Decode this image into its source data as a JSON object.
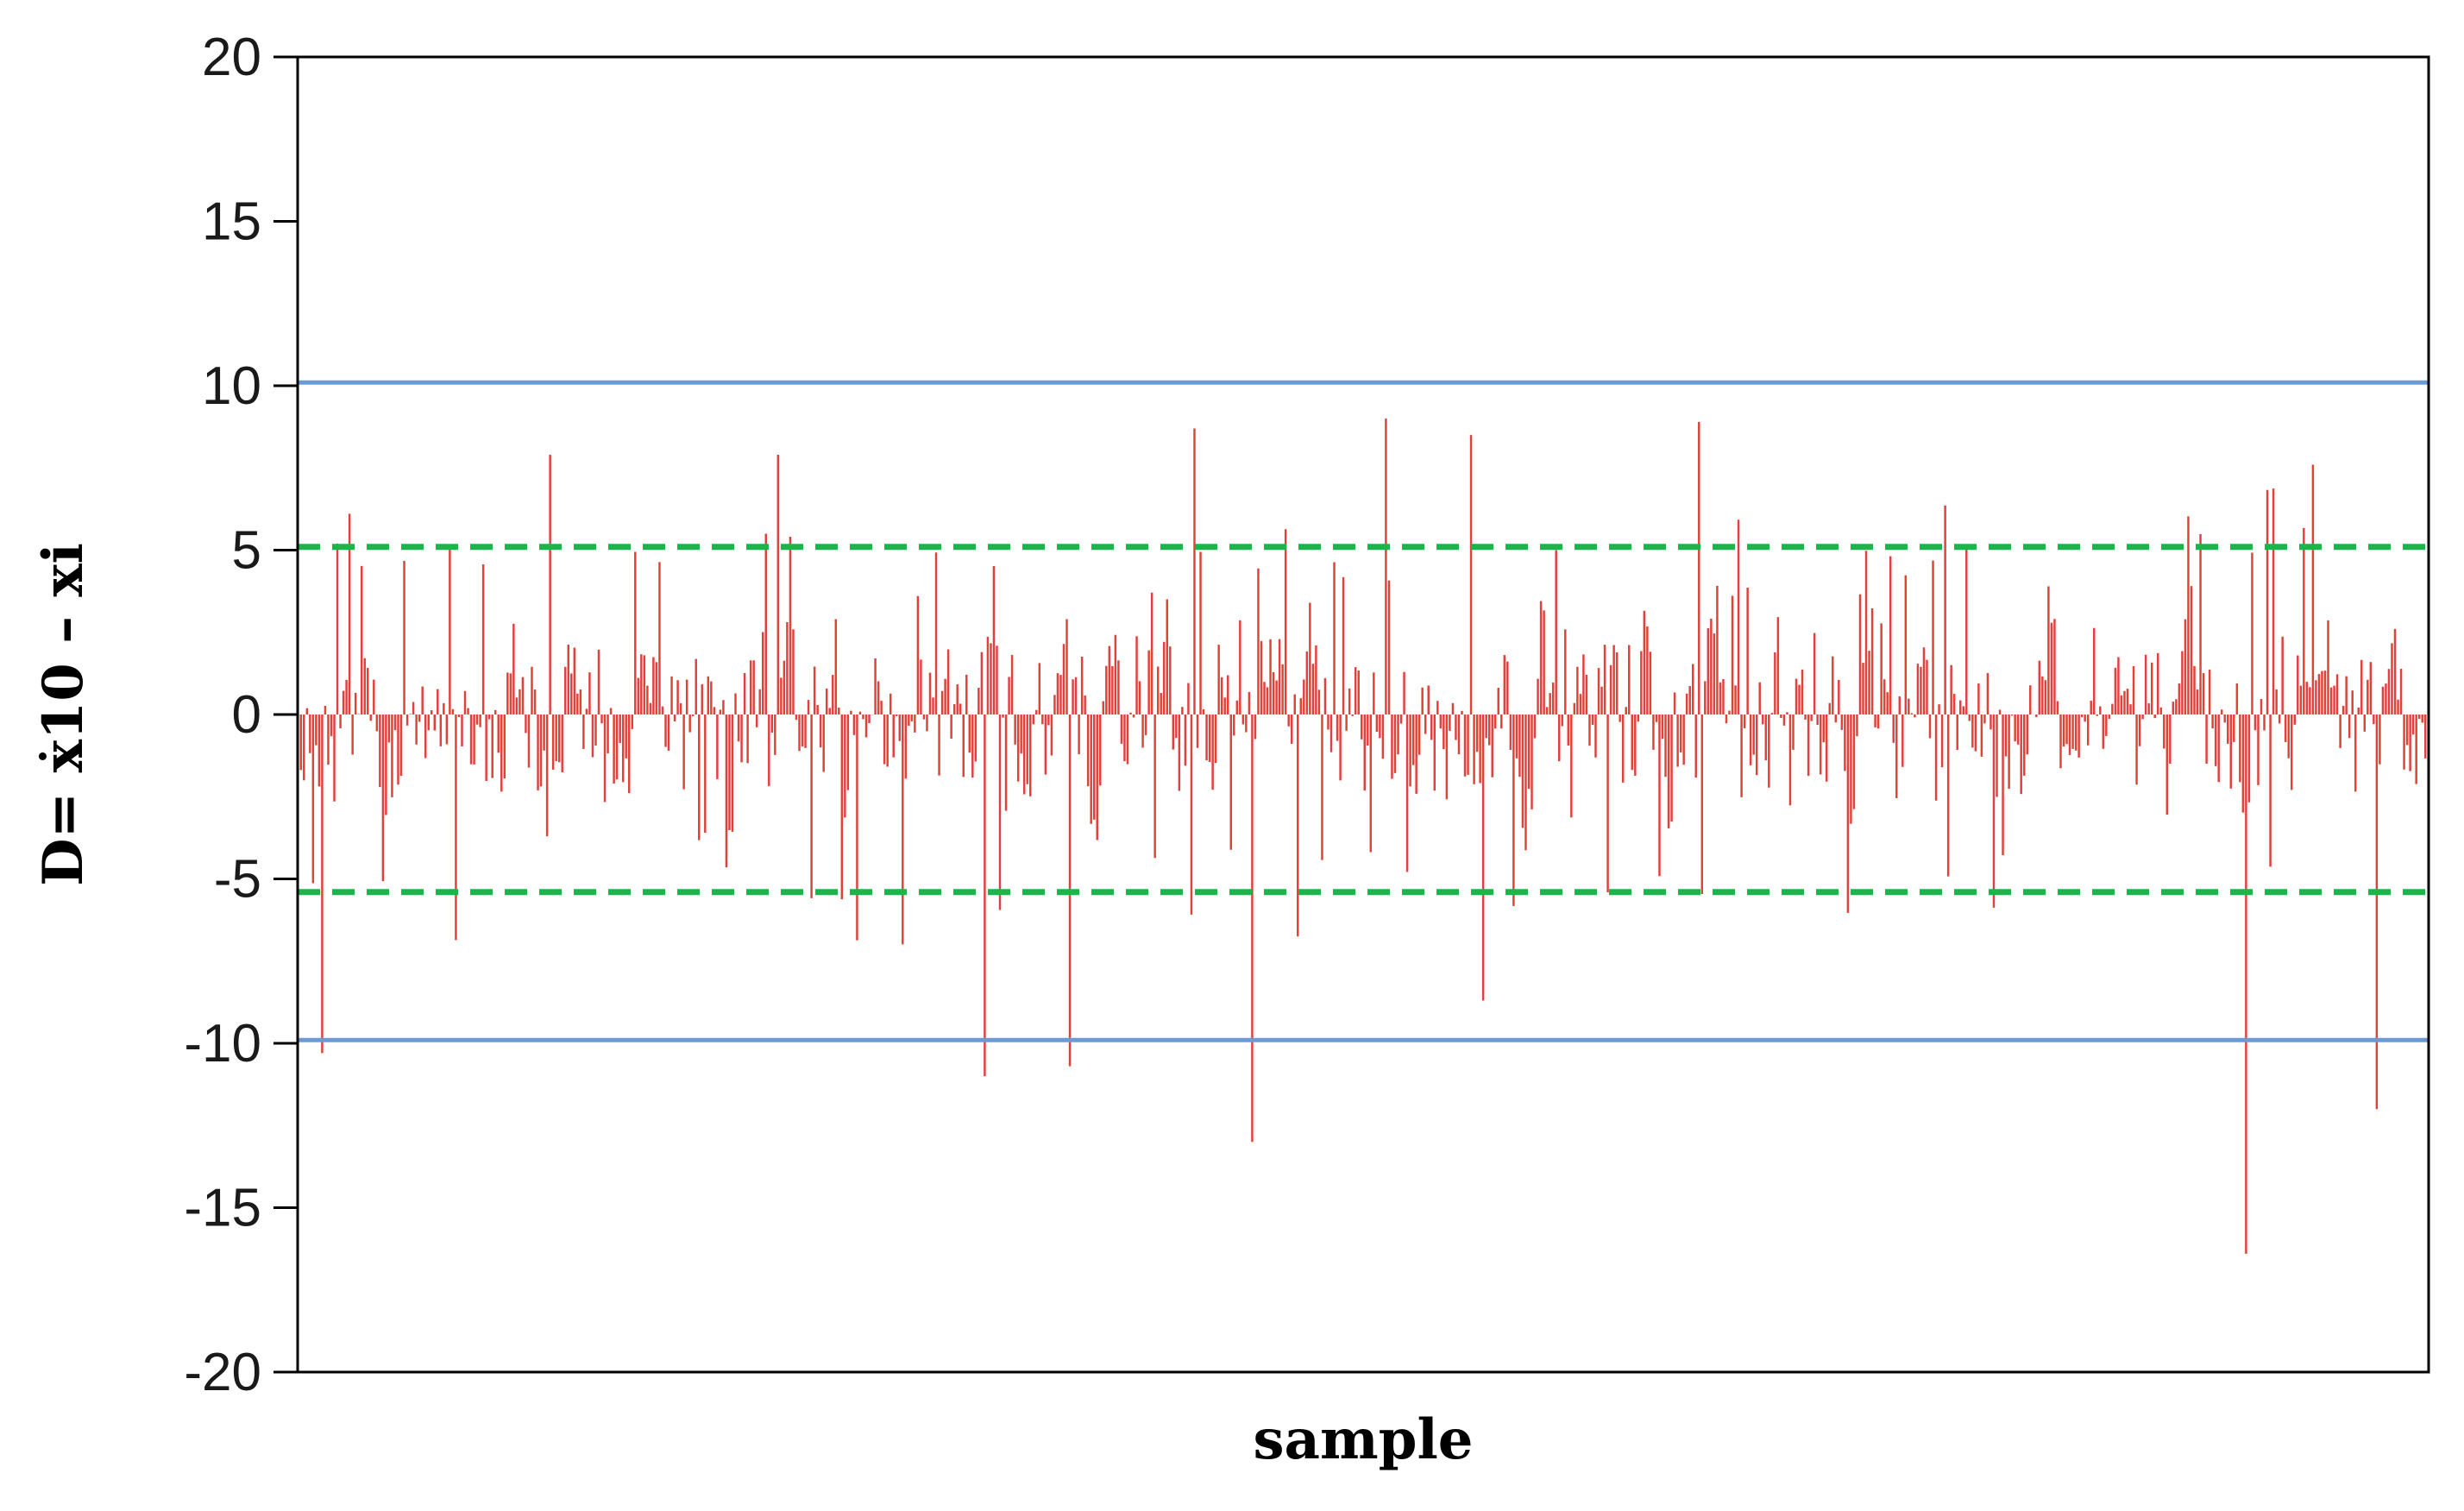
{
  "chart_data": {
    "type": "bar",
    "xlabel": "sample",
    "ylabel": "D= ẋ10 – xi",
    "ylim": [
      -20,
      20
    ],
    "yticks": [
      20,
      15,
      10,
      5,
      0,
      -5,
      -10,
      -15,
      -20
    ],
    "ytick_labels": [
      "20",
      "15",
      "10",
      "5",
      "0",
      "-5",
      "-10",
      "-15",
      "-20"
    ],
    "grid": false,
    "n_samples": 700,
    "bar_color": "#e0413a",
    "reference_lines": [
      {
        "value": 10.1,
        "style": "solid",
        "color": "#6b9bd2"
      },
      {
        "value": 5.1,
        "style": "dashed",
        "color": "#1fb34a"
      },
      {
        "value": -5.4,
        "style": "dashed",
        "color": "#1fb34a"
      },
      {
        "value": -9.9,
        "style": "solid",
        "color": "#6b9bd2"
      }
    ],
    "notable_values": [
      {
        "sample": 7,
        "value": -10.3
      },
      {
        "sample": 82,
        "value": 7.9
      },
      {
        "sample": 157,
        "value": 7.9
      },
      {
        "sample": 225,
        "value": -11.0
      },
      {
        "sample": 253,
        "value": -10.7
      },
      {
        "sample": 294,
        "value": 8.7
      },
      {
        "sample": 313,
        "value": -13.0
      },
      {
        "sample": 357,
        "value": 9.0
      },
      {
        "sample": 385,
        "value": 8.5
      },
      {
        "sample": 389,
        "value": -8.7
      },
      {
        "sample": 460,
        "value": 8.9
      },
      {
        "sample": 640,
        "value": -16.4
      },
      {
        "sample": 662,
        "value": 7.6
      },
      {
        "sample": 683,
        "value": -12.0
      }
    ]
  }
}
